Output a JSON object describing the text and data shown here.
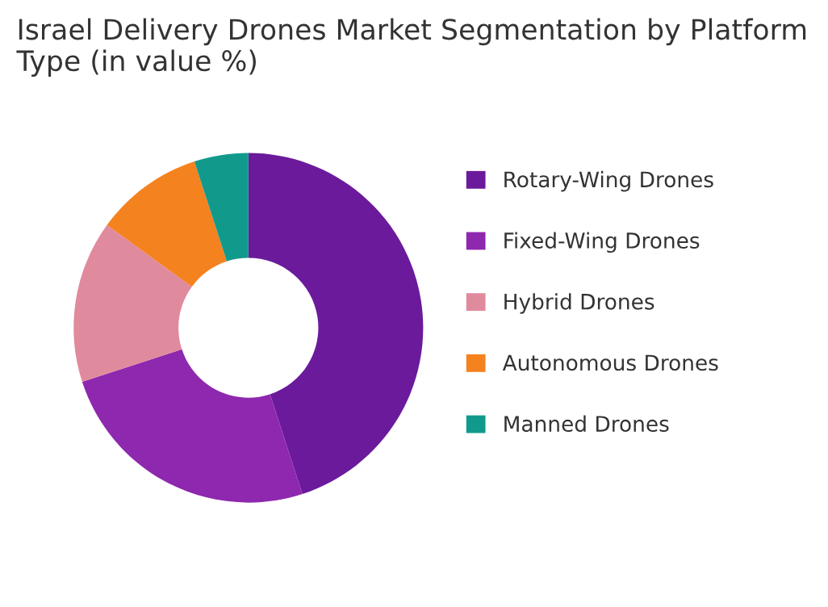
{
  "chart_data": {
    "type": "donut",
    "title": "Israel Delivery Drones Market Segmentation by Platform Type (in value %)",
    "categories": [
      "Rotary-Wing Drones",
      "Fixed-Wing Drones",
      "Hybrid Drones",
      "Autonomous Drones",
      "Manned Drones"
    ],
    "values": [
      45,
      25,
      15,
      10,
      5
    ],
    "colors": [
      "#6b1a9c",
      "#8e28ae",
      "#e08a9e",
      "#f4821f",
      "#119a8c"
    ],
    "legend": "right"
  }
}
